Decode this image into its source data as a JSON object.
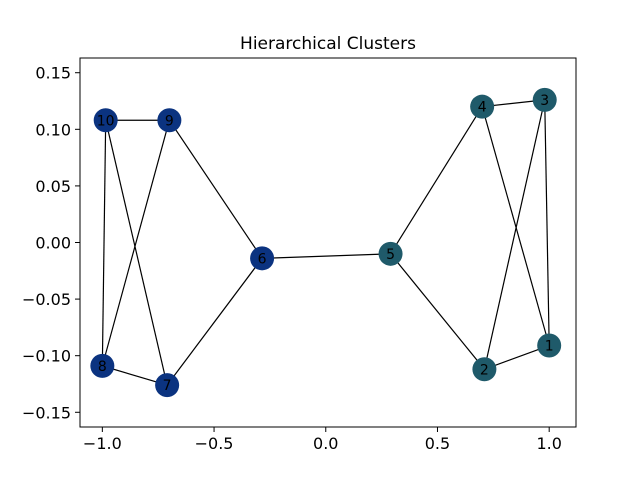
{
  "chart_data": {
    "type": "network",
    "title": "Hierarchical Clusters",
    "xlabel": "",
    "ylabel": "",
    "xlim": [
      -1.1,
      1.12
    ],
    "ylim": [
      -0.163,
      0.163
    ],
    "xticks": [
      -1.0,
      -0.5,
      0.0,
      0.5,
      1.0
    ],
    "xtick_labels": [
      "−1.0",
      "−0.5",
      "0.0",
      "0.5",
      "1.0"
    ],
    "yticks": [
      -0.15,
      -0.1,
      -0.05,
      0.0,
      0.05,
      0.1,
      0.15
    ],
    "ytick_labels": [
      "−0.15",
      "−0.10",
      "−0.05",
      "0.00",
      "0.05",
      "0.10",
      "0.15"
    ],
    "grid": false,
    "colors": {
      "cluster_a": "#0b3380",
      "cluster_b": "#1f5a6a"
    },
    "nodes": [
      {
        "id": "1",
        "x": 1.0,
        "y": -0.091,
        "cluster": "cluster_b"
      },
      {
        "id": "2",
        "x": 0.71,
        "y": -0.112,
        "cluster": "cluster_b"
      },
      {
        "id": "3",
        "x": 0.98,
        "y": 0.126,
        "cluster": "cluster_b"
      },
      {
        "id": "4",
        "x": 0.7,
        "y": 0.12,
        "cluster": "cluster_b"
      },
      {
        "id": "5",
        "x": 0.29,
        "y": -0.01,
        "cluster": "cluster_b"
      },
      {
        "id": "6",
        "x": -0.285,
        "y": -0.014,
        "cluster": "cluster_a"
      },
      {
        "id": "7",
        "x": -0.71,
        "y": -0.126,
        "cluster": "cluster_a"
      },
      {
        "id": "8",
        "x": -1.0,
        "y": -0.109,
        "cluster": "cluster_a"
      },
      {
        "id": "9",
        "x": -0.7,
        "y": 0.108,
        "cluster": "cluster_a"
      },
      {
        "id": "10",
        "x": -0.985,
        "y": 0.108,
        "cluster": "cluster_a"
      }
    ],
    "edges": [
      [
        "10",
        "9"
      ],
      [
        "10",
        "8"
      ],
      [
        "10",
        "7"
      ],
      [
        "9",
        "8"
      ],
      [
        "9",
        "6"
      ],
      [
        "8",
        "7"
      ],
      [
        "7",
        "6"
      ],
      [
        "6",
        "5"
      ],
      [
        "5",
        "4"
      ],
      [
        "5",
        "2"
      ],
      [
        "4",
        "3"
      ],
      [
        "4",
        "1"
      ],
      [
        "3",
        "2"
      ],
      [
        "3",
        "1"
      ],
      [
        "2",
        "1"
      ]
    ]
  }
}
